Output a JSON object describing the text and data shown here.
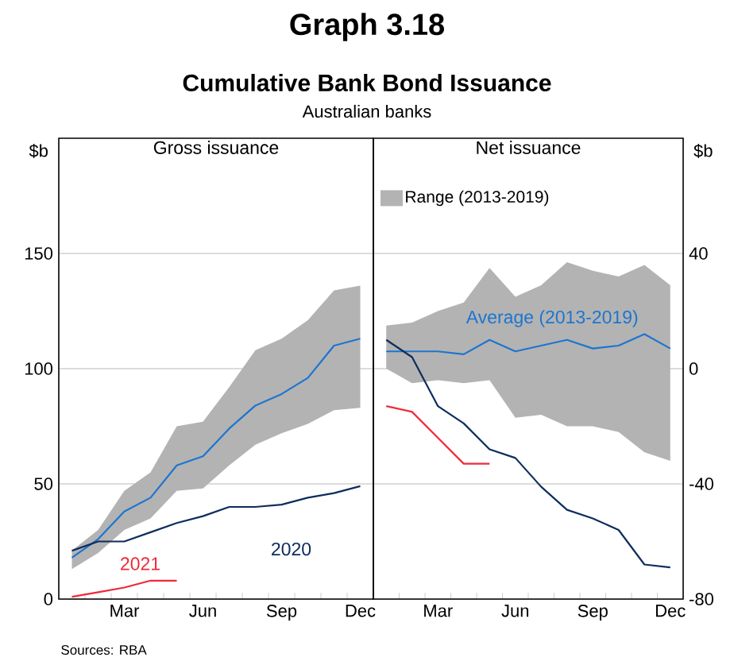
{
  "chart_data": [
    {
      "type": "line",
      "title": "Gross issuance",
      "ylabel": "$b",
      "annotations": [
        "Graph 3.18",
        "Cumulative Bank Bond Issuance",
        "Australian banks",
        "Sources: RBA"
      ],
      "categories": [
        null,
        null,
        "Mar",
        null,
        null,
        "Jun",
        null,
        null,
        "Sep",
        null,
        null,
        "Dec"
      ],
      "ylim": [
        0,
        200
      ],
      "yticks": [
        0,
        50,
        100,
        150
      ],
      "grid": "y",
      "series": [
        {
          "type": "area",
          "color": "#b3b3b3",
          "values": [
            null,
            null,
            null,
            null,
            null,
            null,
            null,
            null,
            null,
            null,
            null,
            null
          ],
          "lower": [
            13,
            20,
            30,
            35,
            47,
            48,
            58,
            67,
            72,
            76,
            82,
            83
          ],
          "upper": [
            21,
            30,
            47,
            55,
            75,
            77,
            92,
            108,
            113,
            121,
            134,
            136
          ]
        },
        {
          "color": "#1c75d0",
          "values": [
            18,
            26,
            38,
            44,
            58,
            62,
            74,
            84,
            89,
            96,
            110,
            113
          ]
        },
        {
          "name": "2020",
          "color": "#0e2d5c",
          "values": [
            21,
            25,
            25,
            29,
            33,
            36,
            40,
            40,
            41,
            44,
            46,
            49
          ]
        },
        {
          "name": "2021",
          "color": "#ee2a3a",
          "values": [
            1,
            3,
            5,
            8,
            8,
            null,
            null,
            null,
            null,
            null,
            null,
            null
          ]
        }
      ]
    },
    {
      "type": "line",
      "title": "Net issuance",
      "ylabel": "$b",
      "categories": [
        null,
        null,
        "Mar",
        null,
        null,
        "Jun",
        null,
        null,
        "Sep",
        null,
        null,
        "Dec"
      ],
      "ylim": [
        -80,
        80
      ],
      "yticks": [
        -80,
        -40,
        0,
        40
      ],
      "grid": "y",
      "series": [
        {
          "type": "area",
          "name": "Range (2013-2019)",
          "color": "#b3b3b3",
          "values": [
            null,
            null,
            null,
            null,
            null,
            null,
            null,
            null,
            null,
            null,
            null,
            null
          ],
          "lower": [
            0,
            -5,
            -4,
            -5,
            -4,
            -17,
            -16,
            -20,
            -20,
            -22,
            -29,
            -32
          ],
          "upper": [
            15,
            16,
            20,
            23,
            35,
            25,
            29,
            37,
            34,
            32,
            36,
            29
          ]
        },
        {
          "name": "Average (2013-2019)",
          "color": "#1c75d0",
          "values": [
            6,
            6,
            6,
            5,
            10,
            6,
            8,
            10,
            7,
            8,
            12,
            7
          ]
        },
        {
          "color": "#0e2d5c",
          "values": [
            10,
            4,
            -13,
            -19,
            -28,
            -31,
            -41,
            -49,
            -52,
            -56,
            -68,
            -69
          ]
        },
        {
          "color": "#ee2a3a",
          "values": [
            -13,
            -15,
            -24,
            -33,
            -33,
            null,
            null,
            null,
            null,
            null,
            null,
            null
          ]
        }
      ]
    }
  ]
}
